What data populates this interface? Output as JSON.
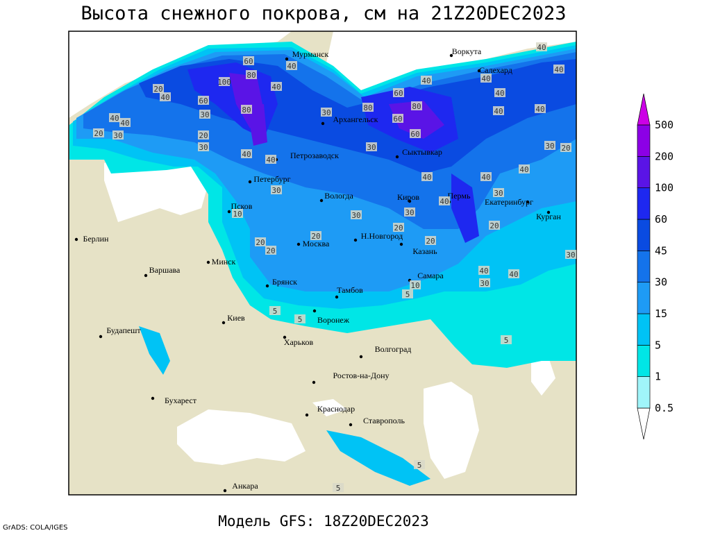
{
  "title": "Высота снежного покрова, см на 21Z20DEC2023",
  "footer": "Модель GFS: 18Z20DEC2023",
  "credit": "GrADS: COLA/IGES",
  "colorbar": {
    "levels": [
      0.5,
      1,
      5,
      15,
      30,
      45,
      60,
      100,
      200,
      500
    ],
    "colors": [
      "#ffffff",
      "#a0f5fa",
      "#00e6e6",
      "#00c3f5",
      "#1e9bf5",
      "#1473eb",
      "#0a4be1",
      "#1e28f0",
      "#5a14e6",
      "#8c00e6",
      "#cc00e6"
    ]
  },
  "cities": [
    "Мурманск",
    "Воркута",
    "Салехард",
    "Архангельск",
    "Петрозаводск",
    "Сыктывкар",
    "Петербург",
    "Вологда",
    "Киров",
    "Пермь",
    "Екатеринбург",
    "Курган",
    "Псков",
    "Н.Новгород",
    "Казань",
    "Москва",
    "Берлин",
    "Минск",
    "Варшава",
    "Брянск",
    "Тамбов",
    "Самара",
    "Киев",
    "Воронеж",
    "Будапешт",
    "Харьков",
    "Волгоград",
    "Ростов-на-Дону",
    "Бухарест",
    "Краснодар",
    "Ставрополь",
    "Анкара"
  ],
  "contour_labels": [
    60,
    80,
    100,
    40,
    40,
    40,
    60,
    80,
    40,
    40,
    20,
    30,
    40,
    30,
    20,
    30,
    40,
    20,
    60,
    30,
    40,
    40,
    30,
    60,
    80,
    80,
    60,
    30,
    40,
    40,
    40,
    40,
    40,
    40,
    40,
    20,
    30,
    30,
    30,
    20,
    30,
    10,
    20,
    20,
    20,
    20,
    20,
    40,
    40,
    30,
    30,
    10,
    5,
    5,
    5,
    5,
    5,
    5,
    40,
    40
  ]
}
